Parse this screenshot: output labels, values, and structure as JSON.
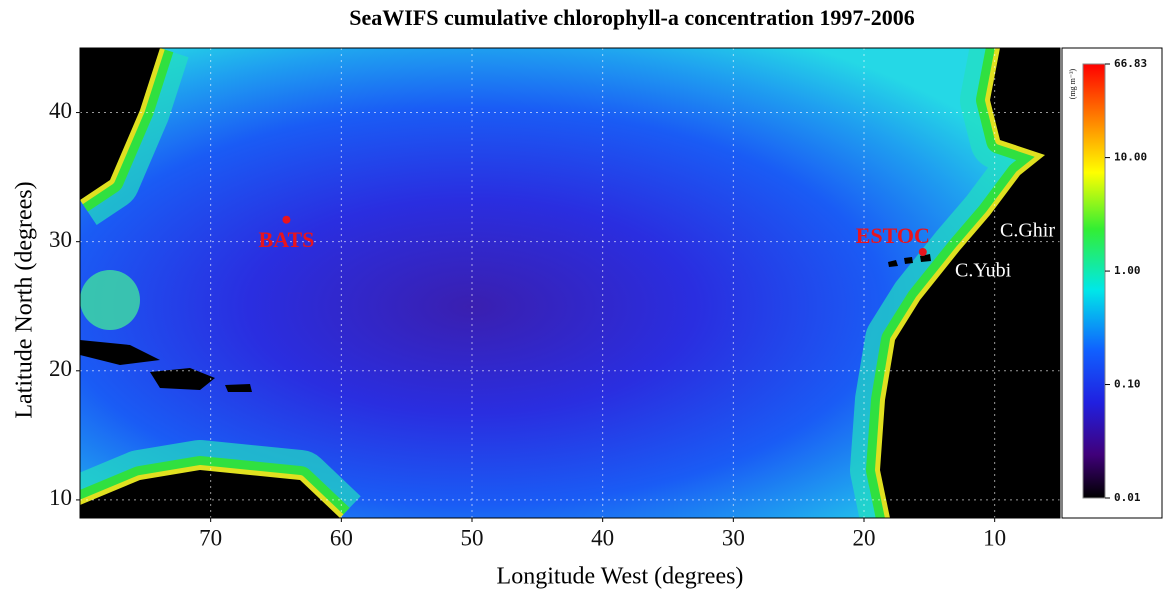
{
  "title": "SeaWIFS cumulative chlorophyll-a concentration 1997-2006",
  "map": {
    "xlabel": "Longitude West (degrees)",
    "ylabel": "Latitude North (degrees)",
    "xlim": [
      80,
      5
    ],
    "ylim": [
      8.6,
      45
    ],
    "xticks": [
      70,
      60,
      50,
      40,
      30,
      20,
      10
    ],
    "yticks": [
      10,
      20,
      30,
      40
    ],
    "grid": true,
    "stations": [
      {
        "name": "BATS",
        "lon": 64.2,
        "lat": 31.7,
        "color": "#e8141e"
      },
      {
        "name": "ESTOC",
        "lon": 15.5,
        "lat": 29.2,
        "color": "#e8141e"
      }
    ],
    "annotations": [
      "C.Ghir",
      "C.Yubi"
    ]
  },
  "colorbar": {
    "unit": "(mg m⁻³)",
    "log": true,
    "lim": [
      0.01,
      66.83
    ],
    "ticks": [
      66.83,
      {
        "value": 10,
        "label": "10.00"
      },
      {
        "value": 1,
        "label": "1.00"
      },
      {
        "value": 0.1,
        "label": "0.10"
      },
      0.01
    ]
  }
}
